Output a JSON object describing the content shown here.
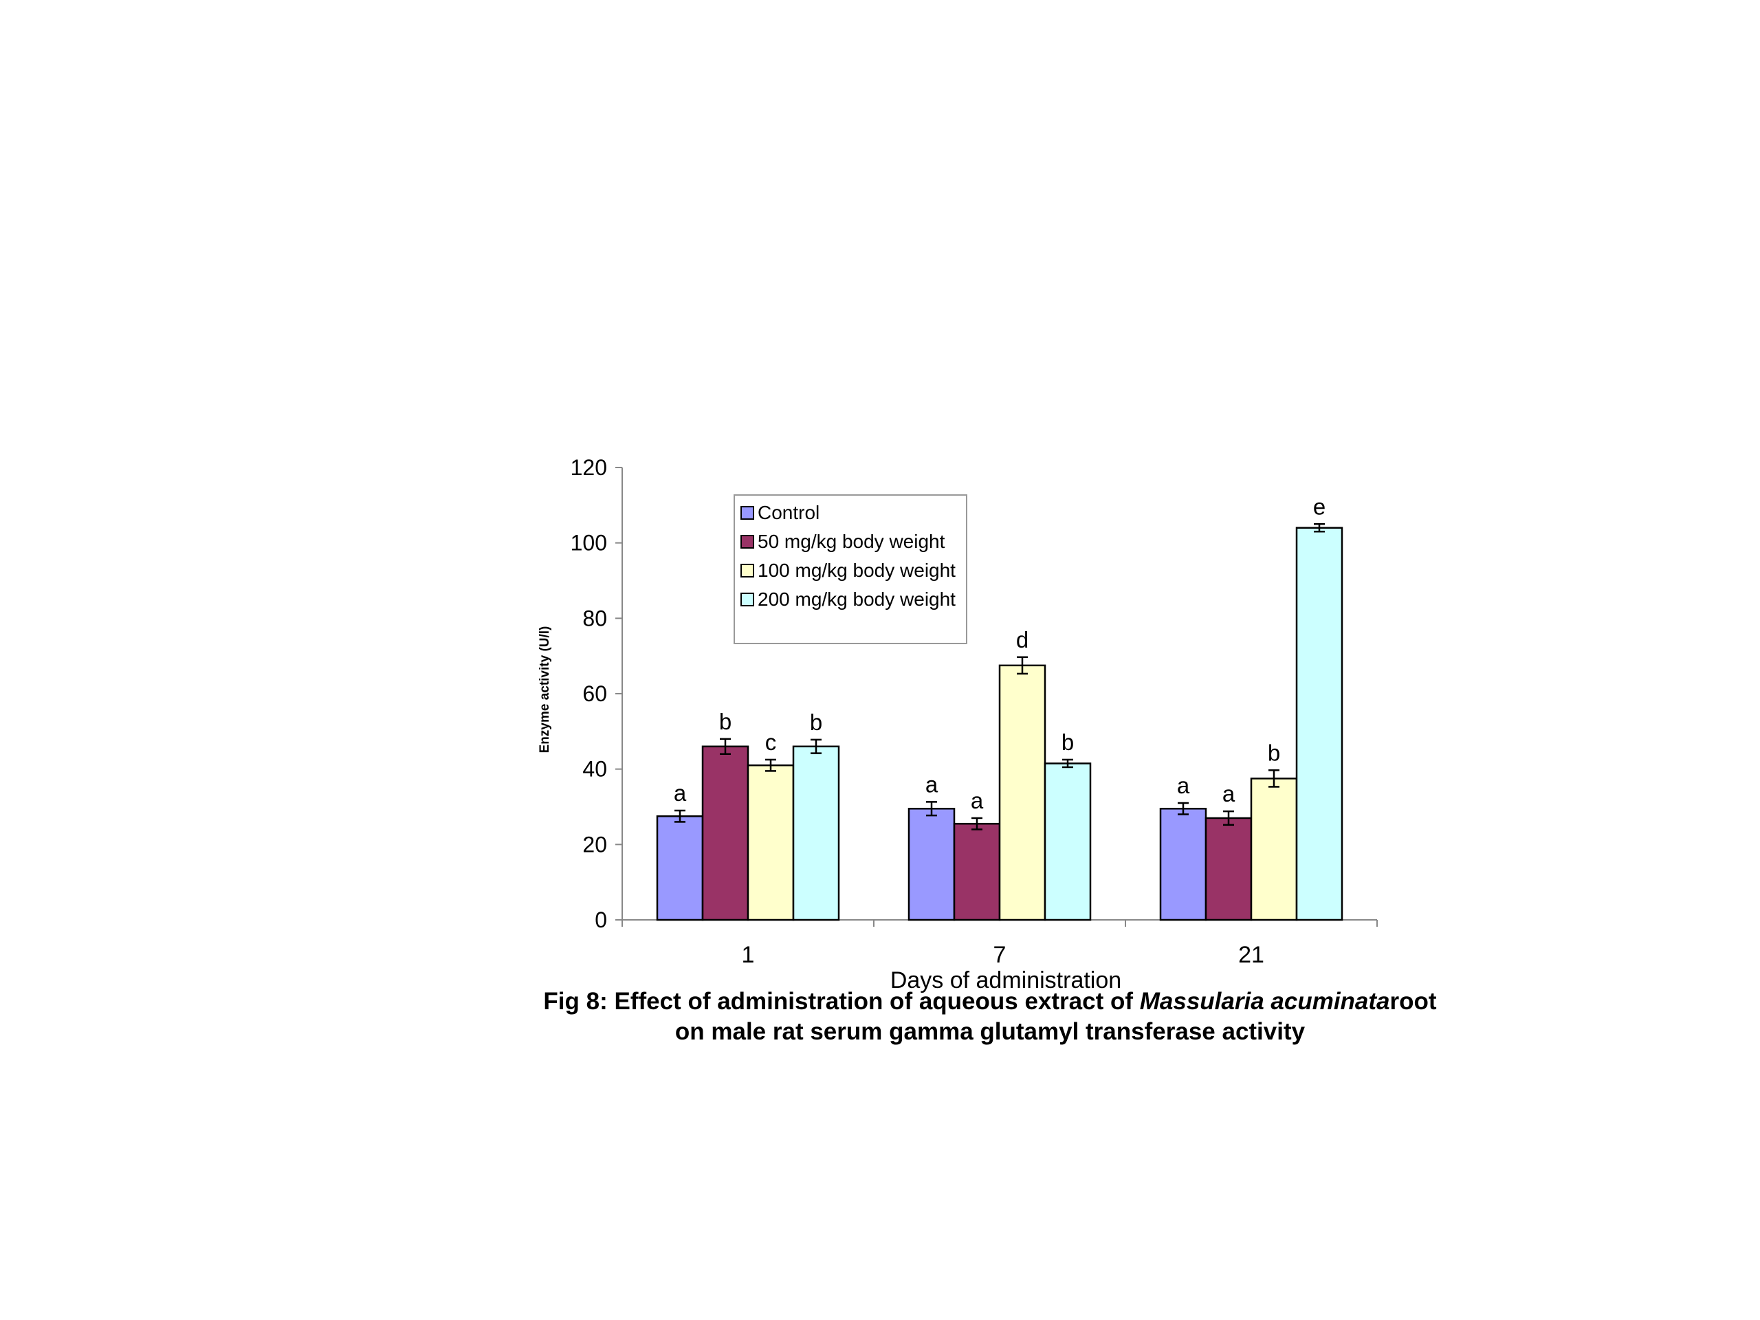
{
  "chart_data": {
    "type": "bar",
    "categories": [
      "1",
      "7",
      "21"
    ],
    "series": [
      {
        "name": "Control",
        "color": "#9999FF",
        "values": [
          27.5,
          29.5,
          29.5
        ],
        "errors": [
          1.5,
          1.8,
          1.5
        ],
        "letters": [
          "a",
          "a",
          "a"
        ]
      },
      {
        "name": "50 mg/kg body weight",
        "color": "#993366",
        "values": [
          46,
          25.5,
          27
        ],
        "errors": [
          2,
          1.5,
          1.8
        ],
        "letters": [
          "b",
          "a",
          "a"
        ]
      },
      {
        "name": "100 mg/kg body weight",
        "color": "#FFFFCC",
        "values": [
          41,
          67.5,
          37.5
        ],
        "errors": [
          1.5,
          2.2,
          2.2
        ],
        "letters": [
          "c",
          "d",
          "b"
        ]
      },
      {
        "name": "200 mg/kg body weight",
        "color": "#CCFFFF",
        "values": [
          46,
          41.5,
          104
        ],
        "errors": [
          1.8,
          1,
          1
        ],
        "letters": [
          "b",
          "b",
          "e"
        ]
      }
    ],
    "xlabel": "Days of administration",
    "ylabel": "Enzyme activity (U/l)",
    "ylim": [
      0,
      120
    ],
    "yticks": [
      "0",
      "20",
      "40",
      "60",
      "80",
      "100",
      "120"
    ],
    "grid": false,
    "legend_position": "top-left"
  },
  "caption": {
    "line1_before": "Fig 8: Effect of administration of aqueous extract of ",
    "line1_species": "Massularia acuminata",
    "line1_after": "root",
    "line2": "on male rat serum gamma glutamyl transferase activity"
  }
}
